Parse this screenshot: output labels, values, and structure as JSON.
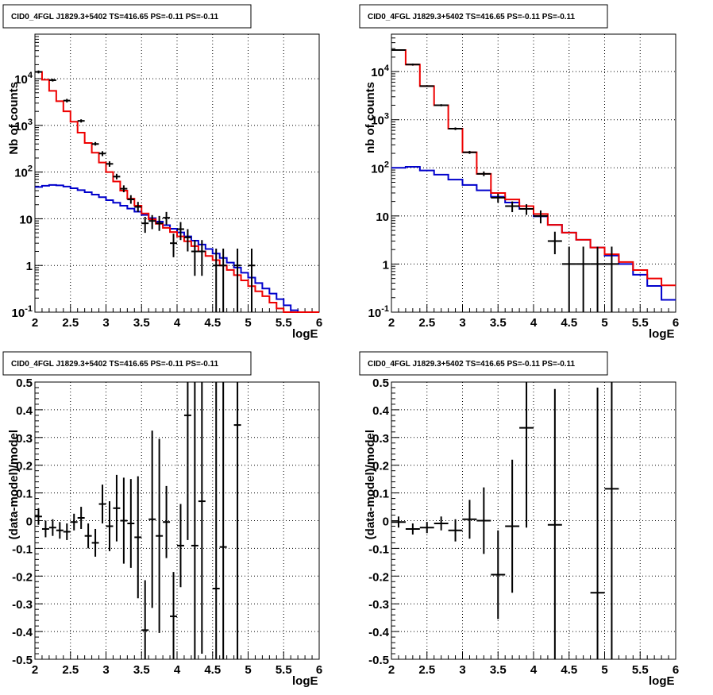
{
  "panels": [
    {
      "title": "CID0_4FGL J1829.3+5402 TS=416.65 PS=-0.11 PS=-0.11",
      "type": "counts",
      "xlabel": "logE",
      "ylabel": "Nb of counts",
      "xlim": [
        2,
        6
      ],
      "ylim": [
        0.1,
        90000
      ],
      "yscale": "log",
      "xticks": [
        "2",
        "2.5",
        "3",
        "3.5",
        "4",
        "4.5",
        "5",
        "5.5",
        "6"
      ],
      "yticks": [
        {
          "v": 0.1,
          "base": "10",
          "exp": "-1"
        },
        {
          "v": 1,
          "label": "1"
        },
        {
          "v": 10,
          "label": "10"
        },
        {
          "v": 100,
          "base": "10",
          "exp": "2"
        },
        {
          "v": 1000,
          "base": "10",
          "exp": "3"
        },
        {
          "v": 10000,
          "base": "10",
          "exp": "4"
        }
      ],
      "bin_width": 0.1,
      "red_start": 2.0,
      "red": [
        14000,
        9500,
        5500,
        3300,
        2000,
        1200,
        700,
        420,
        260,
        160,
        100,
        63,
        40,
        27,
        19,
        13,
        9.8,
        7.8,
        6.4,
        5.2,
        4.2,
        3.3,
        2.6,
        2.0,
        1.6,
        1.3,
        1.0,
        0.8,
        0.62,
        0.48,
        0.36,
        0.28,
        0.22,
        0.16,
        0.12,
        0.1,
        0.08,
        0.065,
        0.05,
        0.04
      ],
      "blue_start": 2.0,
      "blue": [
        48,
        51,
        53,
        52,
        49,
        45,
        41,
        37,
        33,
        29,
        25,
        22,
        19,
        16.5,
        14.2,
        12.1,
        10.3,
        8.7,
        7.3,
        6.1,
        5.1,
        4.2,
        3.4,
        2.8,
        2.25,
        1.8,
        1.45,
        1.15,
        0.9,
        0.7,
        0.55,
        0.42,
        0.32,
        0.25,
        0.19,
        0.14,
        0.11,
        0.085,
        0.065,
        0.05
      ],
      "points": [
        {
          "x": 2.05,
          "y": 14000,
          "lo": 13000,
          "hi": 15000
        },
        {
          "x": 2.25,
          "y": 9300,
          "lo": 8700,
          "hi": 10000
        },
        {
          "x": 2.45,
          "y": 3400,
          "lo": 3100,
          "hi": 3700
        },
        {
          "x": 2.65,
          "y": 1250,
          "lo": 1150,
          "hi": 1350
        },
        {
          "x": 2.85,
          "y": 400,
          "lo": 370,
          "hi": 440
        },
        {
          "x": 2.95,
          "y": 250,
          "lo": 220,
          "hi": 280
        },
        {
          "x": 3.05,
          "y": 150,
          "lo": 130,
          "hi": 170
        },
        {
          "x": 3.15,
          "y": 80,
          "lo": 70,
          "hi": 92
        },
        {
          "x": 3.25,
          "y": 44,
          "lo": 37,
          "hi": 52
        },
        {
          "x": 3.35,
          "y": 26,
          "lo": 21,
          "hi": 32
        },
        {
          "x": 3.45,
          "y": 18,
          "lo": 14,
          "hi": 23
        },
        {
          "x": 3.55,
          "y": 8,
          "lo": 5,
          "hi": 11
        },
        {
          "x": 3.65,
          "y": 9,
          "lo": 6,
          "hi": 12
        },
        {
          "x": 3.75,
          "y": 8,
          "lo": 5.5,
          "hi": 11.5
        },
        {
          "x": 3.85,
          "y": 10.5,
          "lo": 7.5,
          "hi": 14
        },
        {
          "x": 3.95,
          "y": 3,
          "lo": 1.5,
          "hi": 4.8
        },
        {
          "x": 4.05,
          "y": 6,
          "lo": 3.5,
          "hi": 8.5
        },
        {
          "x": 4.15,
          "y": 4,
          "lo": 2,
          "hi": 6
        },
        {
          "x": 4.25,
          "y": 2,
          "lo": 0.6,
          "hi": 3.5
        },
        {
          "x": 4.35,
          "y": 2,
          "lo": 0.6,
          "hi": 3.5
        },
        {
          "x": 4.55,
          "y": 1,
          "lo": 0.1,
          "hi": 2.3
        },
        {
          "x": 4.65,
          "y": 1,
          "lo": 0.1,
          "hi": 2.3
        },
        {
          "x": 4.85,
          "y": 1,
          "lo": 0.1,
          "hi": 2.3
        },
        {
          "x": 5.05,
          "y": 1,
          "lo": 0.1,
          "hi": 2.3
        }
      ]
    },
    {
      "title": "CID0_4FGL J1829.3+5402 TS=416.65 PS=-0.11 PS=-0.11",
      "type": "counts",
      "xlabel": "logE",
      "ylabel": "nb of counts",
      "xlim": [
        2,
        6
      ],
      "ylim": [
        0.1,
        60000
      ],
      "yscale": "log",
      "xticks": [
        "2",
        "2.5",
        "3",
        "3.5",
        "4",
        "4.5",
        "5",
        "5.5",
        "6"
      ],
      "yticks": [
        {
          "v": 0.1,
          "base": "10",
          "exp": "-1"
        },
        {
          "v": 1,
          "label": "1"
        },
        {
          "v": 10,
          "label": "10"
        },
        {
          "v": 100,
          "base": "10",
          "exp": "2"
        },
        {
          "v": 1000,
          "base": "10",
          "exp": "3"
        },
        {
          "v": 10000,
          "base": "10",
          "exp": "4"
        }
      ],
      "bin_width": 0.2,
      "red_start": 2.0,
      "red": [
        28000,
        14000,
        5000,
        2000,
        650,
        210,
        75,
        30,
        22,
        16,
        11,
        6.5,
        4.5,
        3.2,
        2.2,
        1.6,
        1.1,
        0.75,
        0.5,
        0.36
      ],
      "blue_start": 2.0,
      "blue": [
        100,
        105,
        88,
        72,
        57,
        44,
        34,
        25,
        19,
        14,
        9.8,
        6.5,
        4.5,
        3.2,
        2.2,
        1.5,
        1.0,
        0.6,
        0.35,
        0.18
      ],
      "points": [
        {
          "x": 2.1,
          "y": 28000,
          "lo": 27000,
          "hi": 29000
        },
        {
          "x": 2.3,
          "y": 14000,
          "lo": 13300,
          "hi": 14700
        },
        {
          "x": 2.5,
          "y": 5000,
          "lo": 4800,
          "hi": 5200
        },
        {
          "x": 2.7,
          "y": 2000,
          "lo": 1900,
          "hi": 2100
        },
        {
          "x": 2.9,
          "y": 650,
          "lo": 610,
          "hi": 690
        },
        {
          "x": 3.1,
          "y": 210,
          "lo": 195,
          "hi": 225
        },
        {
          "x": 3.3,
          "y": 75,
          "lo": 67,
          "hi": 84
        },
        {
          "x": 3.5,
          "y": 24,
          "lo": 19,
          "hi": 29
        },
        {
          "x": 3.7,
          "y": 16,
          "lo": 12,
          "hi": 20
        },
        {
          "x": 3.9,
          "y": 14,
          "lo": 10.5,
          "hi": 17.5
        },
        {
          "x": 4.1,
          "y": 10,
          "lo": 7,
          "hi": 13
        },
        {
          "x": 4.3,
          "y": 3,
          "lo": 1.6,
          "hi": 4.7
        },
        {
          "x": 4.5,
          "y": 1,
          "lo": 0.1,
          "hi": 2.3
        },
        {
          "x": 4.7,
          "y": 1,
          "lo": 0.1,
          "hi": 2.3
        },
        {
          "x": 4.9,
          "y": 1,
          "lo": 0.1,
          "hi": 2.3
        },
        {
          "x": 5.1,
          "y": 1,
          "lo": 0.1,
          "hi": 2.3
        }
      ]
    },
    {
      "title": "CID0_4FGL J1829.3+5402 TS=416.65 PS=-0.11 PS=-0.11",
      "type": "residual",
      "xlabel": "logE",
      "ylabel": "(data-model)/model",
      "xlim": [
        2,
        6
      ],
      "ylim": [
        -0.5,
        0.5
      ],
      "yscale": "linear",
      "xticks": [
        "2",
        "2.5",
        "3",
        "3.5",
        "4",
        "4.5",
        "5",
        "5.5",
        "6"
      ],
      "yticks": [
        {
          "v": -0.5,
          "label": "-0.5"
        },
        {
          "v": -0.4,
          "label": "-0.4"
        },
        {
          "v": -0.3,
          "label": "-0.3"
        },
        {
          "v": -0.2,
          "label": "-0.2"
        },
        {
          "v": -0.1,
          "label": "-0.1"
        },
        {
          "v": 0,
          "label": "0"
        },
        {
          "v": 0.1,
          "label": "0.1"
        },
        {
          "v": 0.2,
          "label": "0.2"
        },
        {
          "v": 0.3,
          "label": "0.3"
        },
        {
          "v": 0.4,
          "label": "0.4"
        },
        {
          "v": 0.5,
          "label": "0.5"
        }
      ],
      "bin_width": 0.1,
      "points": [
        {
          "x": 2.05,
          "y": 0.015,
          "e": 0.03
        },
        {
          "x": 2.15,
          "y": -0.03,
          "e": 0.03
        },
        {
          "x": 2.25,
          "y": -0.025,
          "e": 0.03
        },
        {
          "x": 2.35,
          "y": -0.035,
          "e": 0.03
        },
        {
          "x": 2.45,
          "y": -0.04,
          "e": 0.03
        },
        {
          "x": 2.55,
          "y": -0.005,
          "e": 0.03
        },
        {
          "x": 2.65,
          "y": 0.01,
          "e": 0.04
        },
        {
          "x": 2.75,
          "y": -0.055,
          "e": 0.045
        },
        {
          "x": 2.85,
          "y": -0.08,
          "e": 0.05
        },
        {
          "x": 2.95,
          "y": 0.06,
          "e": 0.07
        },
        {
          "x": 3.05,
          "y": -0.02,
          "e": 0.09
        },
        {
          "x": 3.15,
          "y": 0.045,
          "e": 0.12
        },
        {
          "x": 3.25,
          "y": 0.0,
          "e": 0.155
        },
        {
          "x": 3.35,
          "y": -0.01,
          "e": 0.16
        },
        {
          "x": 3.45,
          "y": -0.06,
          "e": 0.22
        },
        {
          "x": 3.55,
          "y": -0.395,
          "e": 0.18
        },
        {
          "x": 3.65,
          "y": 0.005,
          "e": 0.32
        },
        {
          "x": 3.75,
          "y": -0.055,
          "e": 0.35
        },
        {
          "x": 3.85,
          "y": -0.005,
          "e": 0.13
        },
        {
          "x": 3.95,
          "y": -0.345,
          "e": 0.16
        },
        {
          "x": 4.05,
          "y": -0.09,
          "e": 0.15
        },
        {
          "x": 4.15,
          "y": 0.38,
          "e": 0.45
        },
        {
          "x": 4.25,
          "y": -0.09,
          "e": 0.7
        },
        {
          "x": 4.35,
          "y": 0.07,
          "e": 0.55
        },
        {
          "x": 4.55,
          "y": -0.245,
          "e": 0.9
        },
        {
          "x": 4.65,
          "y": -0.095,
          "e": 0.9
        },
        {
          "x": 4.85,
          "y": 0.345,
          "e": 0.9
        }
      ]
    },
    {
      "title": "CID0_4FGL J1829.3+5402 TS=416.65 PS=-0.11 PS=-0.11",
      "type": "residual",
      "xlabel": "logE",
      "ylabel": "(data-model)/model",
      "xlim": [
        2,
        6
      ],
      "ylim": [
        -0.5,
        0.5
      ],
      "yscale": "linear",
      "xticks": [
        "2",
        "2.5",
        "3",
        "3.5",
        "4",
        "4.5",
        "5",
        "5.5",
        "6"
      ],
      "yticks": [
        {
          "v": -0.5,
          "label": "-0.5"
        },
        {
          "v": -0.4,
          "label": "-0.4"
        },
        {
          "v": -0.3,
          "label": "-0.3"
        },
        {
          "v": -0.2,
          "label": "-0.2"
        },
        {
          "v": -0.1,
          "label": "-0.1"
        },
        {
          "v": 0,
          "label": "0"
        },
        {
          "v": 0.1,
          "label": "0.1"
        },
        {
          "v": 0.2,
          "label": "0.2"
        },
        {
          "v": 0.3,
          "label": "0.3"
        },
        {
          "v": 0.4,
          "label": "0.4"
        },
        {
          "v": 0.5,
          "label": "0.5"
        }
      ],
      "bin_width": 0.2,
      "points": [
        {
          "x": 2.1,
          "y": -0.005,
          "e": 0.02
        },
        {
          "x": 2.3,
          "y": -0.03,
          "e": 0.02
        },
        {
          "x": 2.5,
          "y": -0.025,
          "e": 0.02
        },
        {
          "x": 2.7,
          "y": -0.01,
          "e": 0.025
        },
        {
          "x": 2.9,
          "y": -0.035,
          "e": 0.04
        },
        {
          "x": 3.1,
          "y": 0.005,
          "e": 0.07
        },
        {
          "x": 3.3,
          "y": 0.0,
          "e": 0.12
        },
        {
          "x": 3.5,
          "y": -0.195,
          "e": 0.16
        },
        {
          "x": 3.7,
          "y": -0.02,
          "e": 0.24
        },
        {
          "x": 3.9,
          "y": 0.335,
          "e": 0.36
        },
        {
          "x": 4.3,
          "y": -0.015,
          "e": 0.49
        },
        {
          "x": 4.9,
          "y": -0.26,
          "e": 0.74
        },
        {
          "x": 5.1,
          "y": 0.115,
          "e": 0.9
        }
      ]
    }
  ],
  "colors": {
    "red_model": "#ee0000",
    "blue_model": "#0000cc",
    "data": "#000000",
    "grid": "#000000"
  }
}
